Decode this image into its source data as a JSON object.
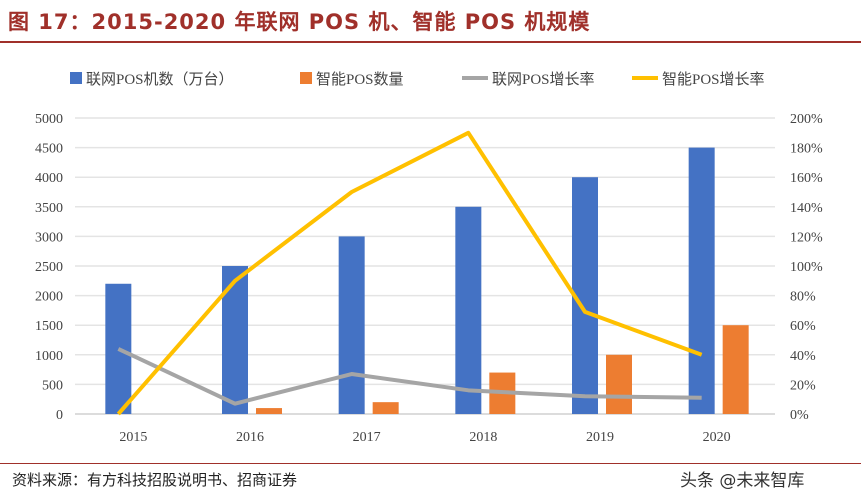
{
  "title": "图 17：2015-2020 年联网 POS 机、智能 POS 机规模",
  "source": "资料来源：有方科技招股说明书、招商证券",
  "watermark": "头条 @未来智库",
  "chart_data": {
    "type": "bar",
    "categories": [
      "2015",
      "2016",
      "2017",
      "2018",
      "2019",
      "2020"
    ],
    "y_left": {
      "range": [
        0,
        5000
      ],
      "ticks": [
        "0",
        "500",
        "1000",
        "1500",
        "2000",
        "2500",
        "3000",
        "3500",
        "4000",
        "4500",
        "5000"
      ]
    },
    "y_right": {
      "range": [
        0,
        200
      ],
      "ticks": [
        "0%",
        "20%",
        "40%",
        "60%",
        "80%",
        "100%",
        "120%",
        "140%",
        "160%",
        "180%",
        "200%"
      ]
    },
    "grid": true,
    "legend_position": "top",
    "series": [
      {
        "name": "联网POS机数（万台）",
        "type": "bar",
        "axis": "left",
        "color": "#4472c4",
        "values": [
          2200,
          2500,
          3000,
          3500,
          4000,
          4500
        ]
      },
      {
        "name": "智能POS数量",
        "type": "bar",
        "axis": "left",
        "color": "#ed7d31",
        "values": [
          0,
          100,
          200,
          700,
          1000,
          1500
        ]
      },
      {
        "name": "联网POS增长率",
        "type": "line",
        "axis": "right",
        "color": "#a5a5a5",
        "values": [
          44,
          7,
          27,
          16,
          12,
          11
        ]
      },
      {
        "name": "智能POS增长率",
        "type": "line",
        "axis": "right",
        "color": "#ffc000",
        "values": [
          0,
          90,
          150,
          190,
          69,
          40
        ]
      }
    ]
  }
}
